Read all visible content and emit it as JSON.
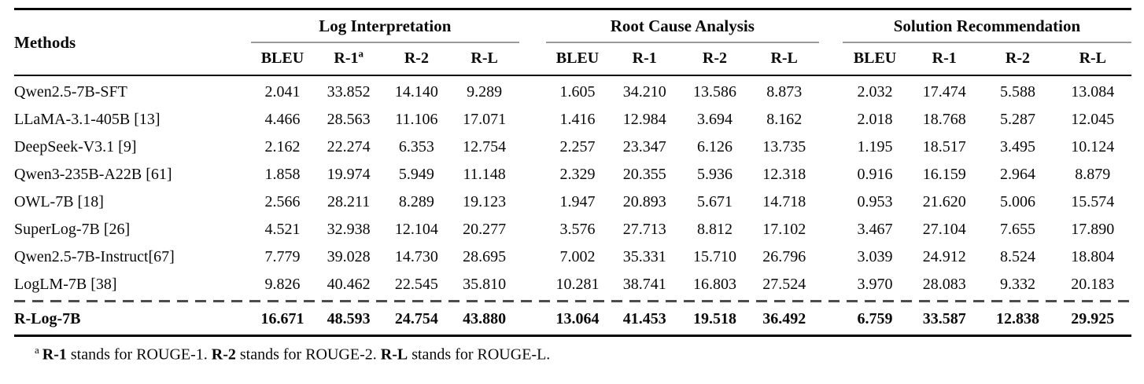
{
  "colors": {
    "rule_black": "#000000",
    "cmidrule_gray": "#9a9a9a",
    "dashed_rule_gray": "#4d4d4d",
    "text": "#0a0a0a",
    "background": "#ffffff"
  },
  "table": {
    "methods_header": "Methods",
    "groups": [
      {
        "label": "Log Interpretation",
        "metrics": [
          {
            "label": "BLEU"
          },
          {
            "label": "R-1",
            "sup": "a"
          },
          {
            "label": "R-2"
          },
          {
            "label": "R-L"
          }
        ]
      },
      {
        "label": "Root Cause Analysis",
        "metrics": [
          {
            "label": "BLEU"
          },
          {
            "label": "R-1"
          },
          {
            "label": "R-2"
          },
          {
            "label": "R-L"
          }
        ]
      },
      {
        "label": "Solution Recommendation",
        "metrics": [
          {
            "label": "BLEU"
          },
          {
            "label": "R-1"
          },
          {
            "label": "R-2"
          },
          {
            "label": "R-L"
          }
        ]
      }
    ],
    "rows": [
      {
        "method": "Qwen2.5-7B-SFT",
        "values": [
          "2.041",
          "33.852",
          "14.140",
          "9.289",
          "1.605",
          "34.210",
          "13.586",
          "8.873",
          "2.032",
          "17.474",
          "5.588",
          "13.084"
        ]
      },
      {
        "method": "LLaMA-3.1-405B [13]",
        "values": [
          "4.466",
          "28.563",
          "11.106",
          "17.071",
          "1.416",
          "12.984",
          "3.694",
          "8.162",
          "2.018",
          "18.768",
          "5.287",
          "12.045"
        ]
      },
      {
        "method": "DeepSeek-V3.1 [9]",
        "values": [
          "2.162",
          "22.274",
          "6.353",
          "12.754",
          "2.257",
          "23.347",
          "6.126",
          "13.735",
          "1.195",
          "18.517",
          "3.495",
          "10.124"
        ]
      },
      {
        "method": "Qwen3-235B-A22B [61]",
        "values": [
          "1.858",
          "19.974",
          "5.949",
          "11.148",
          "2.329",
          "20.355",
          "5.936",
          "12.318",
          "0.916",
          "16.159",
          "2.964",
          "8.879"
        ]
      },
      {
        "method": "OWL-7B [18]",
        "values": [
          "2.566",
          "28.211",
          "8.289",
          "19.123",
          "1.947",
          "20.893",
          "5.671",
          "14.718",
          "0.953",
          "21.620",
          "5.006",
          "15.574"
        ]
      },
      {
        "method": "SuperLog-7B [26]",
        "values": [
          "4.521",
          "32.938",
          "12.104",
          "20.277",
          "3.576",
          "27.713",
          "8.812",
          "17.102",
          "3.467",
          "27.104",
          "7.655",
          "17.890"
        ]
      },
      {
        "method": "Qwen2.5-7B-Instruct[67]",
        "values": [
          "7.779",
          "39.028",
          "14.730",
          "28.695",
          "7.002",
          "35.331",
          "15.710",
          "26.796",
          "3.039",
          "24.912",
          "8.524",
          "18.804"
        ]
      },
      {
        "method": "LogLM-7B [38]",
        "values": [
          "9.826",
          "40.462",
          "22.545",
          "35.810",
          "10.281",
          "38.741",
          "16.803",
          "27.524",
          "3.970",
          "28.083",
          "9.332",
          "20.183"
        ]
      }
    ],
    "highlight_row": {
      "method": "R-Log-7B",
      "values": [
        "16.671",
        "48.593",
        "24.754",
        "43.880",
        "13.064",
        "41.453",
        "19.518",
        "36.492",
        "6.759",
        "33.587",
        "12.838",
        "29.925"
      ]
    }
  },
  "footnote": {
    "marker": "a",
    "segments": [
      {
        "text": "R-1",
        "bold": true
      },
      {
        "text": " stands for ROUGE-1. ",
        "bold": false
      },
      {
        "text": "R-2",
        "bold": true
      },
      {
        "text": " stands for ROUGE-2. ",
        "bold": false
      },
      {
        "text": "R-L",
        "bold": true
      },
      {
        "text": " stands for ROUGE-L.",
        "bold": false
      }
    ]
  }
}
